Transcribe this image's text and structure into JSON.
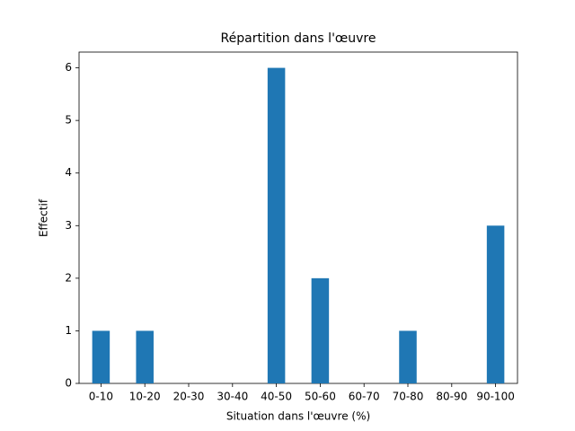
{
  "chart_data": {
    "type": "bar",
    "title": "Répartition dans l'œuvre",
    "x_label": "Situation dans l'œuvre (%)",
    "y_label": "Effectif",
    "categories": [
      "0-10",
      "10-20",
      "20-30",
      "30-40",
      "40-50",
      "50-60",
      "60-70",
      "70-80",
      "80-90",
      "90-100"
    ],
    "values": [
      1,
      1,
      0,
      0,
      6,
      2,
      0,
      1,
      0,
      3
    ],
    "color": "#1f77b4",
    "ylim": [
      0,
      6.3
    ],
    "yticks": [
      0,
      1,
      2,
      3,
      4,
      5,
      6
    ],
    "grid": false
  }
}
